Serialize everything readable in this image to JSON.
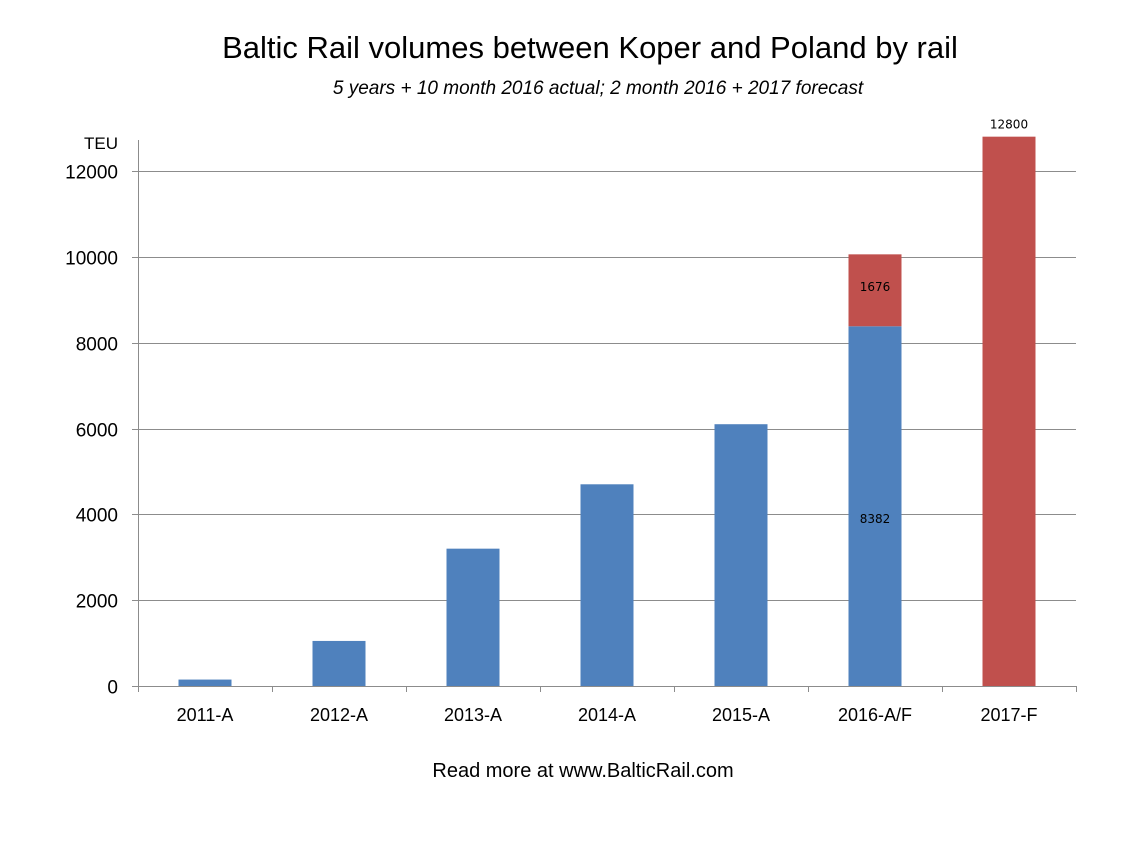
{
  "chart_data": {
    "type": "bar",
    "stacked": true,
    "title": "Baltic Rail volumes between Koper and Poland by rail",
    "subtitle": "5 years + 10 month 2016 actual; 2 month 2016 + 2017 forecast",
    "ylabel": "TEU",
    "xlabel": "",
    "ylim": [
      0,
      12000
    ],
    "yticks": [
      0,
      2000,
      4000,
      6000,
      8000,
      10000,
      12000
    ],
    "grid": true,
    "categories": [
      "2011-A",
      "2012-A",
      "2013-A",
      "2014-A",
      "2015-A",
      "2016-A/F",
      "2017-F"
    ],
    "series": [
      {
        "color": "#4f81bd",
        "values": [
          150,
          1050,
          3200,
          4700,
          6100,
          8382,
          0
        ]
      },
      {
        "color": "#c0504d",
        "values": [
          0,
          0,
          0,
          0,
          0,
          1676,
          12800
        ]
      }
    ],
    "data_labels": [
      {
        "category": "2016-A/F",
        "series": 0,
        "text": "8382"
      },
      {
        "category": "2016-A/F",
        "series": 1,
        "text": "1676"
      },
      {
        "category": "2017-F",
        "series": 1,
        "text": "12800"
      }
    ],
    "footer": "Read more at www.BalticRail.com"
  }
}
